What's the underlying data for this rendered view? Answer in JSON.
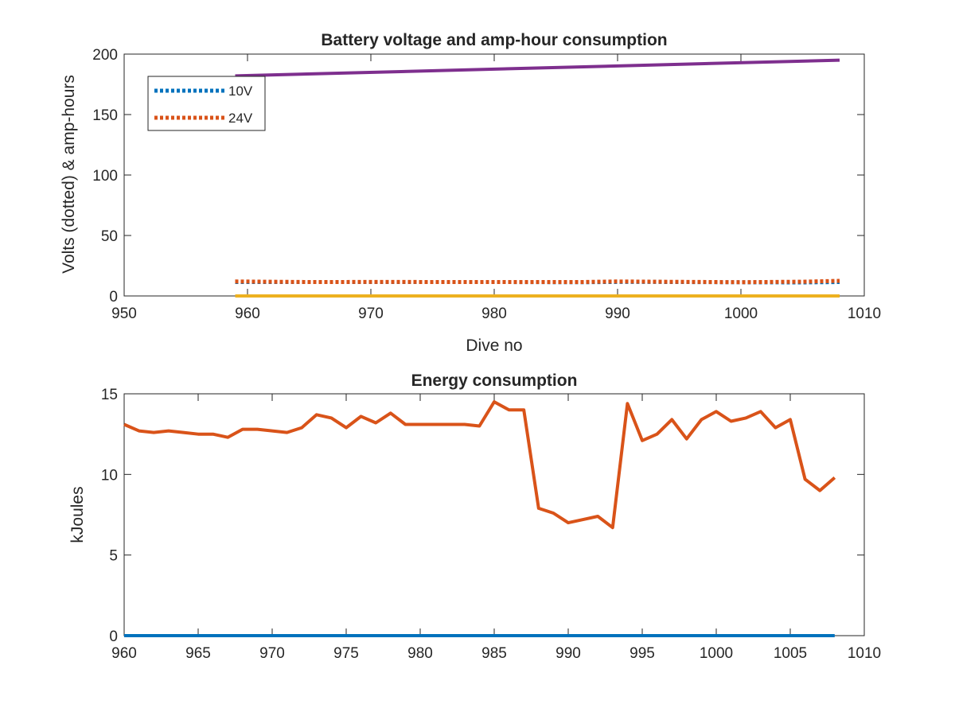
{
  "chart_data": [
    {
      "type": "line",
      "title": "Battery voltage and amp-hour consumption",
      "xlabel": "Dive no",
      "ylabel": "Volts (dotted) & amp-hours",
      "xlim": [
        950,
        1010
      ],
      "ylim": [
        0,
        200
      ],
      "xticks": [
        "950",
        "960",
        "970",
        "980",
        "990",
        "1000",
        "1010"
      ],
      "yticks": [
        "0",
        "50",
        "100",
        "150",
        "200"
      ],
      "legend_position": "top-left",
      "series": [
        {
          "name": "10V",
          "style": "dotted",
          "color": "#0072BD",
          "x": [
            959,
            970,
            980,
            987,
            990,
            993,
            1000,
            1005,
            1008
          ],
          "y": [
            11.5,
            11.5,
            11.5,
            11.3,
            11.6,
            11.6,
            11.3,
            11.2,
            11.5
          ]
        },
        {
          "name": "24V",
          "style": "dotted",
          "color": "#D95319",
          "x": [
            959,
            965,
            970,
            980,
            987,
            990,
            993,
            1000,
            1005,
            1008
          ],
          "y": [
            12,
            11.5,
            11.6,
            11.5,
            11.5,
            12,
            11.8,
            11.4,
            11.8,
            12.5
          ]
        },
        {
          "style": "solid",
          "color": "#EDB120",
          "x": [
            959,
            1008
          ],
          "y": [
            0,
            0
          ]
        },
        {
          "style": "solid",
          "color": "#7E2F8E",
          "x": [
            959,
            1008
          ],
          "y": [
            182,
            195
          ]
        }
      ]
    },
    {
      "type": "line",
      "title": "Energy consumption",
      "xlabel": "",
      "ylabel": "kJoules",
      "xlim": [
        960,
        1010
      ],
      "ylim": [
        0,
        15
      ],
      "xticks": [
        "960",
        "965",
        "970",
        "975",
        "980",
        "985",
        "990",
        "995",
        "1000",
        "1005",
        "1010"
      ],
      "yticks": [
        "0",
        "5",
        "10",
        "15"
      ],
      "series": [
        {
          "style": "solid",
          "color": "#0072BD",
          "x": [
            960,
            1008
          ],
          "y": [
            0,
            0
          ]
        },
        {
          "style": "solid",
          "color": "#D95319",
          "x": [
            960,
            961,
            962,
            963,
            964,
            965,
            966,
            967,
            968,
            969,
            970,
            971,
            972,
            973,
            974,
            975,
            976,
            977,
            978,
            979,
            980,
            981,
            982,
            983,
            984,
            985,
            986,
            987,
            988,
            989,
            990,
            991,
            992,
            993,
            994,
            995,
            996,
            997,
            998,
            999,
            1000,
            1001,
            1002,
            1003,
            1004,
            1005,
            1006,
            1007,
            1008
          ],
          "y": [
            13.1,
            12.7,
            12.6,
            12.7,
            12.6,
            12.5,
            12.5,
            12.3,
            12.8,
            12.8,
            12.7,
            12.6,
            12.9,
            13.7,
            13.5,
            12.9,
            13.6,
            13.2,
            13.8,
            13.1,
            13.1,
            13.1,
            13.1,
            13.1,
            13.0,
            14.5,
            14.0,
            14.0,
            7.9,
            7.6,
            7.0,
            7.2,
            7.4,
            6.7,
            14.4,
            12.1,
            12.5,
            13.4,
            12.2,
            13.4,
            13.9,
            13.3,
            13.5,
            13.9,
            12.9,
            13.4,
            9.7,
            9.0,
            9.8
          ]
        }
      ]
    }
  ]
}
